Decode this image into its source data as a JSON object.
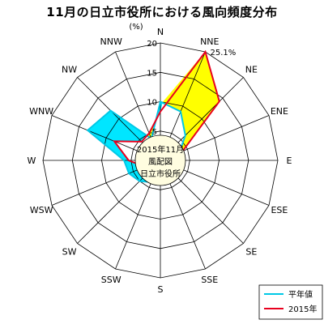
{
  "title": "11月の日立市役所における風向頻度分布",
  "chart_data": {
    "type": "radar",
    "directions": [
      "N",
      "NNE",
      "NE",
      "ENE",
      "E",
      "ESE",
      "SE",
      "SSE",
      "S",
      "SSW",
      "SW",
      "WSW",
      "W",
      "WNW",
      "NW",
      "NNW"
    ],
    "unit_label": "(%)",
    "radial_ticks": [
      0,
      5,
      10,
      15,
      20
    ],
    "rmax": 20,
    "series": [
      {
        "name": "平年値",
        "color": "#00c8e6",
        "values": [
          10.0,
          9.0,
          6.0,
          3.5,
          0.7,
          0.4,
          0.6,
          1.2,
          2.3,
          4.0,
          5.0,
          5.8,
          6.2,
          13.4,
          12.0,
          4.0
        ]
      },
      {
        "name": "2015年",
        "color": "#e8001e",
        "values": [
          8.3,
          25.1,
          14.2,
          4.1,
          0.5,
          0.6,
          1.6,
          2.2,
          2.6,
          2.8,
          2.8,
          2.9,
          5.4,
          8.5,
          4.5,
          5.0
        ]
      }
    ],
    "annotation": "25.1%",
    "center_label": [
      "2015年11月",
      "風配図",
      "日立市役所"
    ]
  },
  "fills": {
    "increase": "#ffff00",
    "decrease": "#00e6ff"
  },
  "legend": {
    "items": [
      {
        "label": "平年値",
        "color": "#00c8e6"
      },
      {
        "label": "2015年",
        "color": "#e8001e"
      }
    ]
  }
}
